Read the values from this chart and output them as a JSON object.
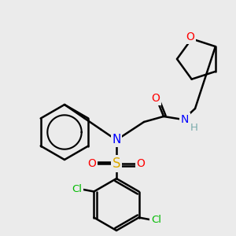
{
  "bg_color": "#ebebeb",
  "atom_colors": {
    "C": "#000000",
    "H": "#7aacac",
    "N": "#0000ff",
    "O": "#ff0000",
    "S": "#ddaa00",
    "Cl": "#00bb00"
  },
  "bond_color": "#000000",
  "figsize": [
    3.0,
    3.0
  ],
  "dpi": 100
}
